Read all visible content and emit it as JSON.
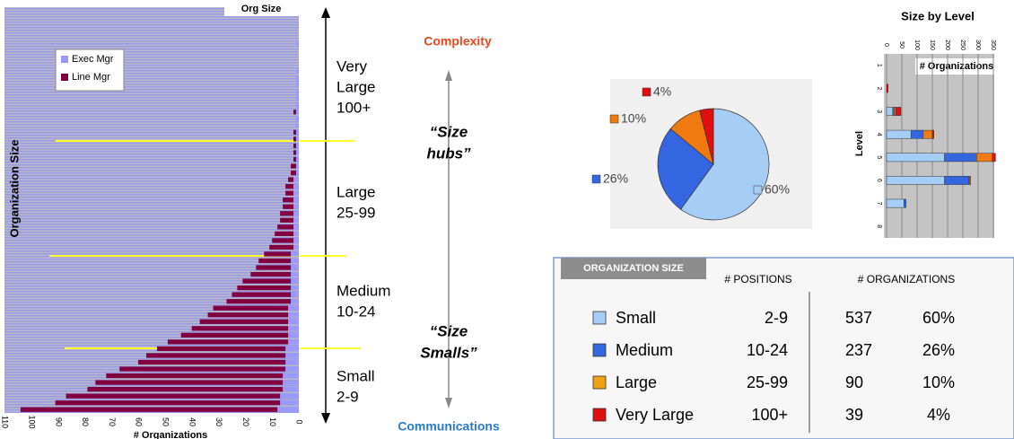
{
  "chart_data": [
    {
      "type": "bar",
      "orientation": "horizontal",
      "stacked": true,
      "title": "Org Size",
      "x_label": "# Organizations",
      "y_label": "Organization Size",
      "categories": [
        null,
        null,
        null,
        null,
        null,
        null,
        null,
        null,
        null,
        null,
        null,
        null,
        null,
        null,
        null,
        null,
        null,
        null,
        null,
        null,
        null,
        null,
        null,
        null,
        null,
        null,
        null,
        null,
        null,
        null,
        null,
        null,
        null,
        null,
        null,
        null,
        null,
        null,
        null,
        null,
        null,
        null,
        null,
        null,
        null,
        null,
        null,
        null,
        null,
        null,
        null,
        null,
        null,
        null,
        null,
        null,
        null,
        null,
        null,
        null
      ],
      "series": [
        {
          "name": "Exec Mgr",
          "color": "#9999ff",
          "values": [
            8,
            7,
            7,
            6,
            6,
            6,
            5,
            5,
            5,
            5,
            4,
            4,
            4,
            4,
            4,
            4,
            3,
            3,
            3,
            3,
            3,
            3,
            3,
            3,
            2,
            2,
            2,
            2,
            2,
            2,
            2,
            2,
            2,
            2,
            2,
            1,
            1,
            1,
            1,
            1,
            1,
            1,
            1,
            1,
            1,
            1,
            1,
            1,
            1,
            1,
            1,
            0,
            0,
            0,
            1,
            0,
            0,
            0,
            0,
            0
          ]
        },
        {
          "name": "Line Mgr",
          "color": "#800040",
          "values": [
            96,
            84,
            80,
            73,
            70,
            66,
            62,
            55,
            52,
            48,
            45,
            40,
            36,
            33,
            30,
            28,
            24,
            22,
            20,
            18,
            15,
            13,
            12,
            10,
            9,
            8,
            7,
            6,
            5,
            5,
            4,
            4,
            3,
            3,
            2,
            2,
            2,
            1,
            1,
            1,
            1,
            1,
            0,
            0,
            1,
            0,
            0,
            0,
            0,
            0,
            0,
            0,
            0,
            0,
            0,
            0,
            0,
            0,
            0,
            0
          ]
        }
      ],
      "xlim": [
        110,
        0
      ],
      "xticks": [
        110,
        100,
        90,
        80,
        70,
        60,
        50,
        40,
        30,
        20,
        10,
        0
      ],
      "legend": "upper left",
      "annotations": [
        [
          "Very",
          "Large",
          "100+"
        ],
        [
          "Large",
          "25-99"
        ],
        [
          "Medium",
          "10-24"
        ],
        [
          "Small",
          "2-9"
        ]
      ],
      "side_labels": {
        "top": "Complexity",
        "bottom": "Communications",
        "hubs": [
          "“Size",
          "hubs”"
        ],
        "smalls": [
          "“Size",
          "Smalls”"
        ]
      }
    },
    {
      "type": "pie",
      "values": [
        60,
        26,
        10,
        4
      ],
      "value_labels": [
        "60%",
        "26%",
        "10%",
        "4%"
      ],
      "colors": [
        "#a6cdf5",
        "#3366e0",
        "#f07a10",
        "#e01010"
      ]
    },
    {
      "type": "bar",
      "orientation": "horizontal",
      "stacked": true,
      "title": "Size by Level",
      "y_label": "Level",
      "legend_title": "# Organizations",
      "categories": [
        "1",
        "2",
        "3",
        "4",
        "5",
        "6",
        "7",
        "8"
      ],
      "series": [
        {
          "color": "#a6cdf5",
          "values": [
            0,
            0,
            20,
            80,
            190,
            190,
            57,
            0
          ]
        },
        {
          "color": "#3366e0",
          "values": [
            0,
            0,
            5,
            40,
            105,
            80,
            7,
            0
          ]
        },
        {
          "color": "#f07a10",
          "values": [
            0,
            0,
            5,
            30,
            52,
            3,
            0,
            0
          ]
        },
        {
          "color": "#e01010",
          "values": [
            0,
            5,
            17,
            5,
            10,
            2,
            0,
            0
          ]
        }
      ],
      "xlim": [
        0,
        350
      ],
      "xticks": [
        0,
        50,
        100,
        150,
        200,
        250,
        300,
        350
      ]
    }
  ],
  "table": {
    "title": "ORGANIZATION SIZE",
    "columns": [
      "# POSITIONS",
      "# ORGANIZATIONS"
    ],
    "rows": [
      {
        "color": "#a6cdf5",
        "name": "Small",
        "positions": "2-9",
        "count": "537",
        "share": "60%"
      },
      {
        "color": "#3366e0",
        "name": "Medium",
        "positions": "10-24",
        "count": "237",
        "share": "26%"
      },
      {
        "color": "#f0a010",
        "name": "Large",
        "positions": "25-99",
        "count": "90",
        "share": "10%"
      },
      {
        "color": "#e01010",
        "name": "Very Large",
        "positions": "100+",
        "count": "39",
        "share": "4%"
      }
    ]
  }
}
